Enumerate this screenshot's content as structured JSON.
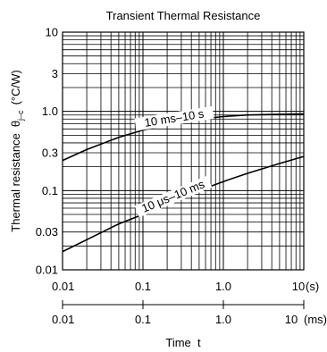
{
  "chart_data": {
    "type": "line",
    "title": "Transient Thermal Resistance",
    "ylabel": "Thermal resistance",
    "ylabel_symbol": "θ",
    "ylabel_subscript": "j–c",
    "ylabel_unit": "(°C/W)",
    "xlabel": "Time  t",
    "y_scale": "log",
    "x_scale": "log",
    "ylim": [
      0.01,
      10
    ],
    "xlim": [
      0.01,
      10
    ],
    "grid": true,
    "y_tick_labels": [
      {
        "v": 10,
        "label": "10"
      },
      {
        "v": 3,
        "label": "3"
      },
      {
        "v": 1,
        "label": "1.0"
      },
      {
        "v": 0.3,
        "label": "0.3"
      },
      {
        "v": 0.1,
        "label": "0.1"
      },
      {
        "v": 0.03,
        "label": "0.03"
      },
      {
        "v": 0.01,
        "label": "0.01"
      }
    ],
    "x_tick_labels": [
      {
        "v": 0.01,
        "label": "0.01"
      },
      {
        "v": 0.1,
        "label": "0.1"
      },
      {
        "v": 1,
        "label": "1.0"
      },
      {
        "v": 10,
        "label": "10"
      }
    ],
    "x_unit_top": "(s)",
    "x2_tick_labels": [
      {
        "v": 0.01,
        "label": "0.01"
      },
      {
        "v": 0.1,
        "label": "0.1"
      },
      {
        "v": 1,
        "label": "1.0"
      },
      {
        "v": 10,
        "label": "10"
      }
    ],
    "x2_unit": "(ms)",
    "series": [
      {
        "name": "10 ms–10 s",
        "x": [
          0.01,
          0.02,
          0.05,
          0.1,
          0.2,
          0.5,
          1,
          2,
          5,
          10
        ],
        "y": [
          0.24,
          0.33,
          0.47,
          0.58,
          0.69,
          0.8,
          0.86,
          0.9,
          0.92,
          0.93
        ],
        "label_at": 0.25
      },
      {
        "name": "10 μs–10 ms",
        "x": [
          0.01,
          0.02,
          0.05,
          0.1,
          0.2,
          0.5,
          1,
          2,
          5,
          10
        ],
        "y": [
          0.017,
          0.024,
          0.038,
          0.05,
          0.068,
          0.1,
          0.13,
          0.165,
          0.22,
          0.27
        ],
        "label_at": 0.25
      }
    ]
  }
}
